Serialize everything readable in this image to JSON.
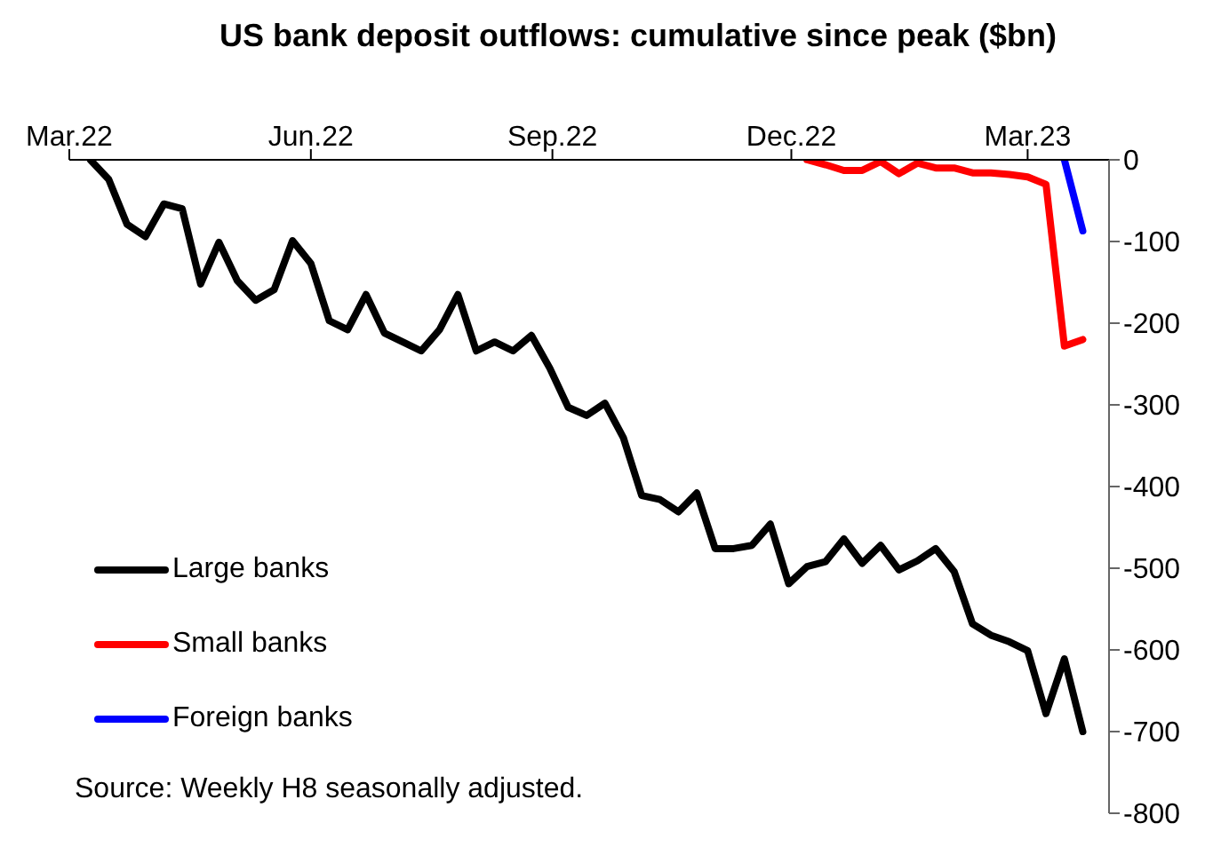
{
  "chart_data": {
    "type": "line",
    "title": "US bank deposit outflows: cumulative since peak ($bn)",
    "annotations": [
      "Source: Weekly H8 seasonally adjusted."
    ],
    "xlim": [
      "2022-03-01",
      "2023-04-01"
    ],
    "xticks": [
      {
        "value": "2022-03-01",
        "label": "Mar.22"
      },
      {
        "value": "2022-06-01",
        "label": "Jun.22"
      },
      {
        "value": "2022-09-01",
        "label": "Sep.22"
      },
      {
        "value": "2022-12-01",
        "label": "Dec.22"
      },
      {
        "value": "2023-03-01",
        "label": "Mar.23"
      }
    ],
    "ylim": [
      -800,
      0
    ],
    "yticks": [
      0,
      -100,
      -200,
      -300,
      -400,
      -500,
      -600,
      -700,
      -800
    ],
    "grid": false,
    "legend": "bottom left",
    "marker": "none",
    "line_style": "solid",
    "series": [
      {
        "name": "Large banks",
        "color": "#000000",
        "x": [
          "2022-03-09",
          "2022-03-16",
          "2022-03-23",
          "2022-03-30",
          "2022-04-06",
          "2022-04-13",
          "2022-04-20",
          "2022-04-27",
          "2022-05-04",
          "2022-05-11",
          "2022-05-18",
          "2022-05-25",
          "2022-06-01",
          "2022-06-08",
          "2022-06-15",
          "2022-06-22",
          "2022-06-29",
          "2022-07-06",
          "2022-07-13",
          "2022-07-20",
          "2022-07-27",
          "2022-08-03",
          "2022-08-10",
          "2022-08-17",
          "2022-08-24",
          "2022-08-31",
          "2022-09-07",
          "2022-09-14",
          "2022-09-21",
          "2022-09-28",
          "2022-10-05",
          "2022-10-12",
          "2022-10-19",
          "2022-10-26",
          "2022-11-02",
          "2022-11-09",
          "2022-11-16",
          "2022-11-23",
          "2022-11-30",
          "2022-12-07",
          "2022-12-14",
          "2022-12-21",
          "2022-12-28",
          "2023-01-04",
          "2023-01-11",
          "2023-01-18",
          "2023-01-25",
          "2023-02-01",
          "2023-02-08",
          "2023-02-15",
          "2023-02-22",
          "2023-03-01",
          "2023-03-08",
          "2023-03-15",
          "2023-03-22"
        ],
        "values": [
          0,
          -24,
          -79,
          -94,
          -54,
          -60,
          -152,
          -101,
          -148,
          -172,
          -159,
          -99,
          -127,
          -197,
          -208,
          -165,
          -212,
          -223,
          -234,
          -208,
          -165,
          -234,
          -223,
          -234,
          -215,
          -255,
          -303,
          -313,
          -298,
          -340,
          -411,
          -416,
          -431,
          -408,
          -476,
          -476,
          -472,
          -446,
          -519,
          -498,
          -492,
          -464,
          -494,
          -472,
          -502,
          -491,
          -476,
          -504,
          -568,
          -582,
          -590,
          -601,
          -678,
          -611,
          -700
        ]
      },
      {
        "name": "Small banks",
        "color": "#ff0000",
        "x": [
          "2022-12-07",
          "2022-12-14",
          "2022-12-21",
          "2022-12-28",
          "2023-01-04",
          "2023-01-11",
          "2023-01-18",
          "2023-01-25",
          "2023-02-01",
          "2023-02-08",
          "2023-02-15",
          "2023-02-22",
          "2023-03-01",
          "2023-03-08",
          "2023-03-15",
          "2023-03-22"
        ],
        "values": [
          0,
          -6,
          -13,
          -13,
          -2,
          -17,
          -4,
          -10,
          -10,
          -16,
          -16,
          -18,
          -21,
          -30,
          -228,
          -220
        ]
      },
      {
        "name": "Foreign banks",
        "color": "#0000ff",
        "x": [
          "2023-03-15",
          "2023-03-22"
        ],
        "values": [
          0,
          -87
        ]
      }
    ]
  }
}
